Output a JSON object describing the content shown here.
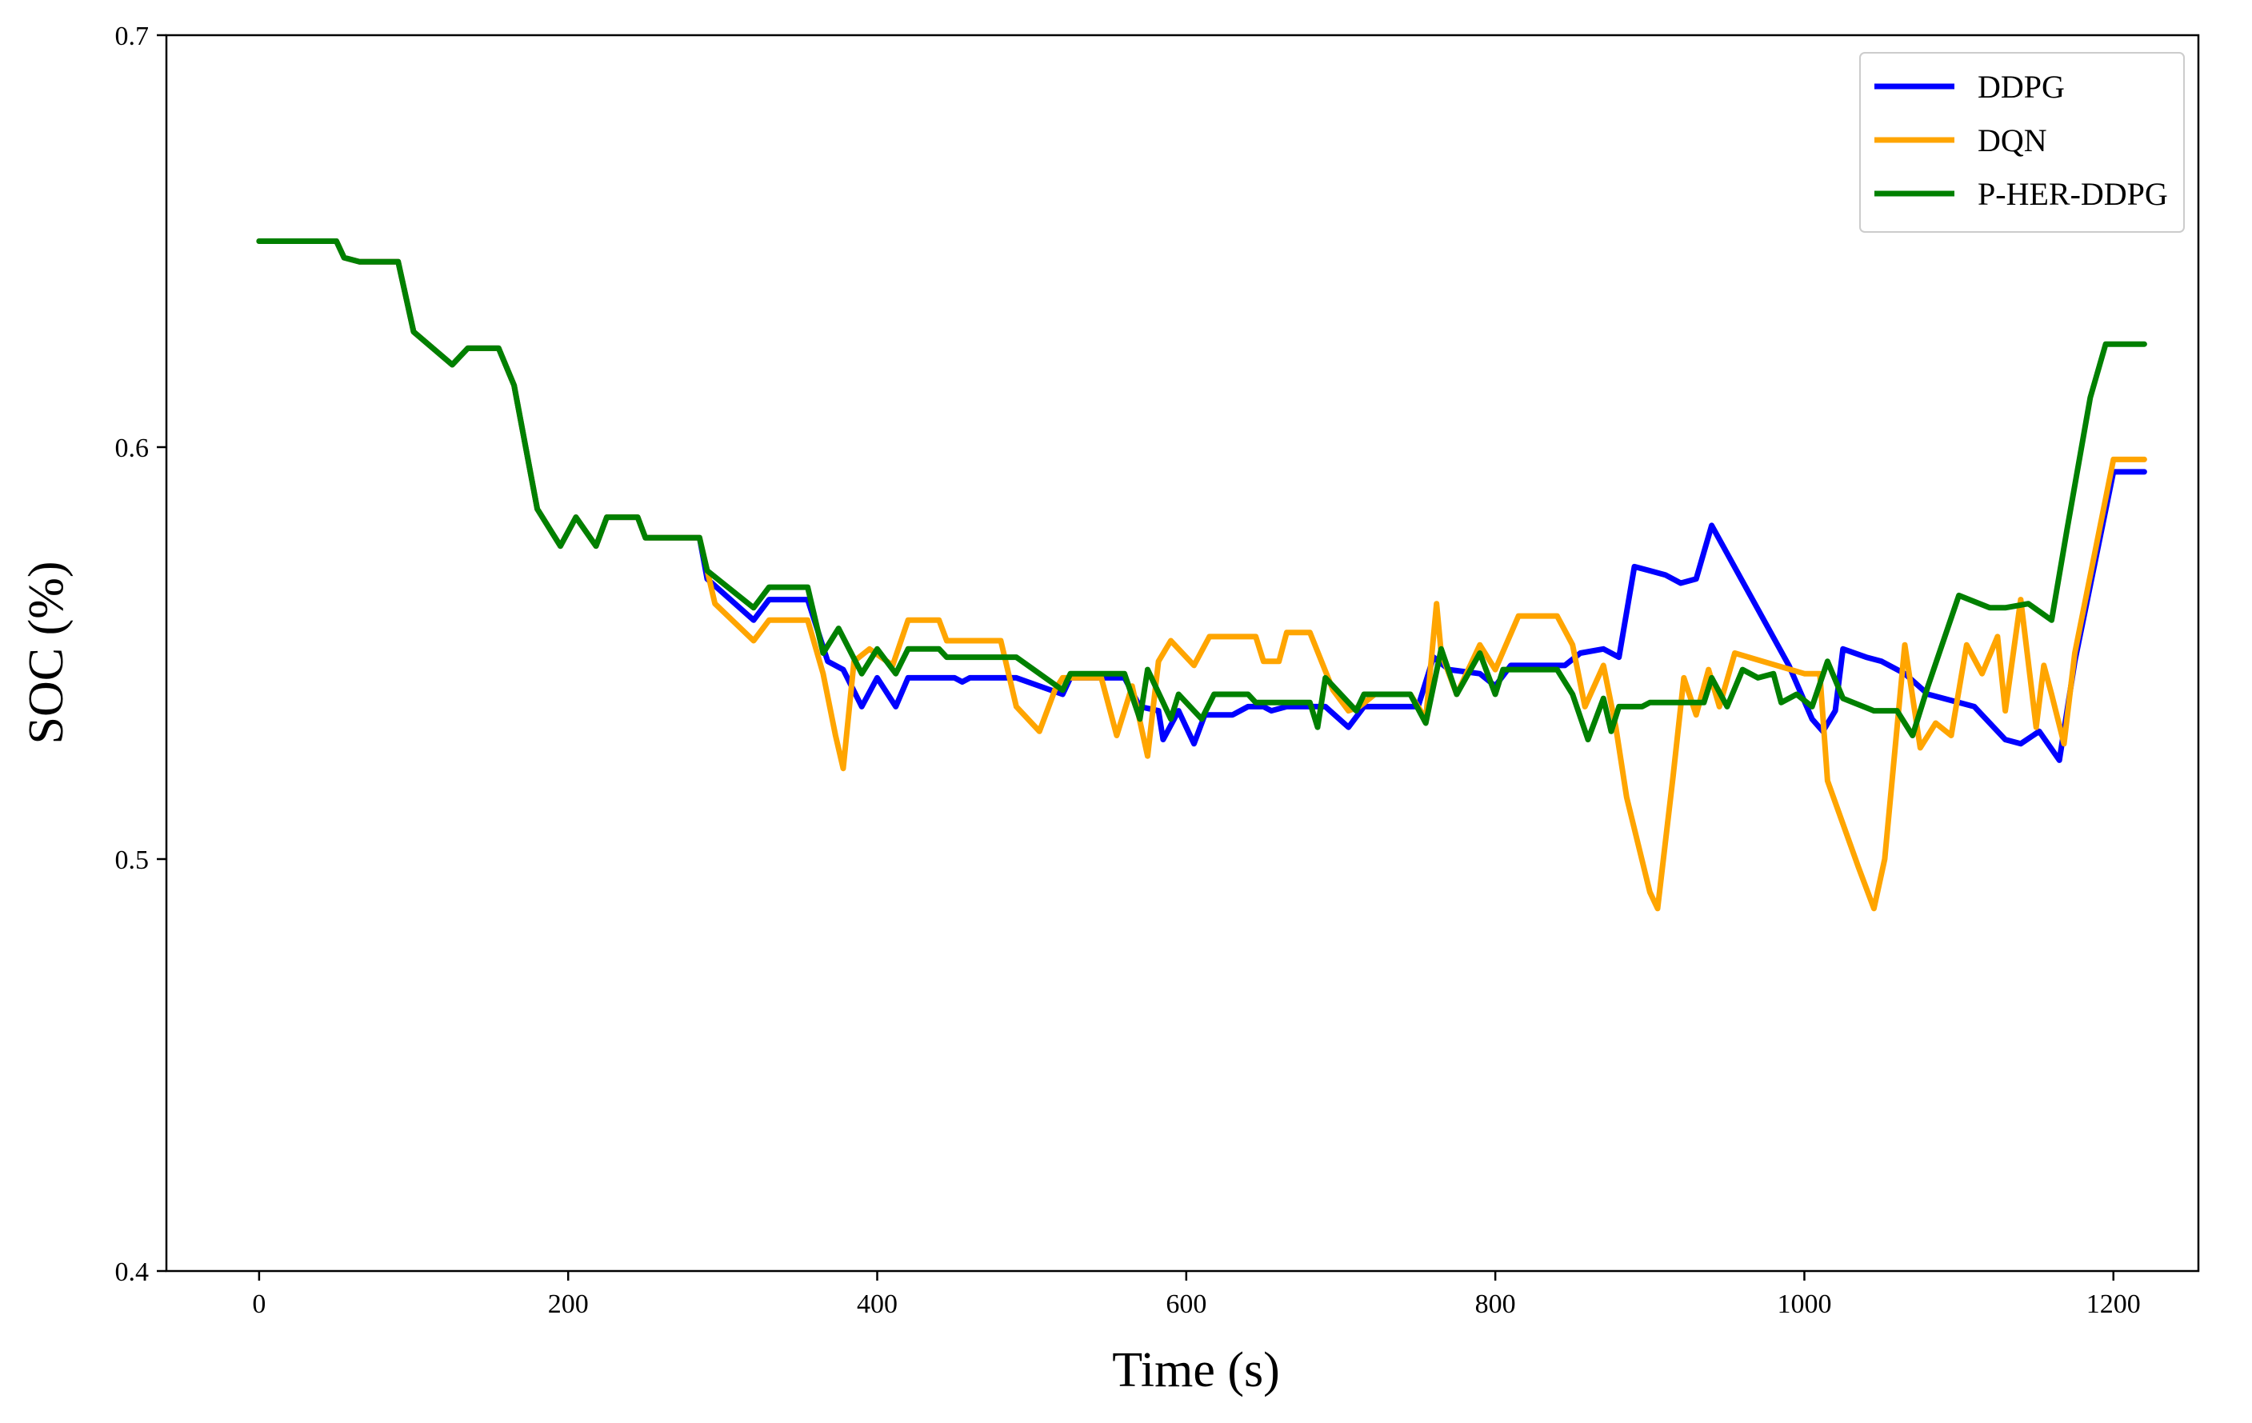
{
  "chart_data": {
    "type": "line",
    "title": "",
    "xlabel": "Time (s)",
    "ylabel": "SOC (%)",
    "xlim": [
      -60,
      1255
    ],
    "ylim": [
      0.4,
      0.7
    ],
    "xticks": [
      0,
      200,
      400,
      600,
      800,
      1000,
      1200
    ],
    "yticks": [
      0.4,
      0.5,
      0.6,
      0.7
    ],
    "xtick_labels": [
      "0",
      "200",
      "400",
      "600",
      "800",
      "1000",
      "1200"
    ],
    "ytick_labels": [
      "0.4",
      "0.5",
      "0.6",
      "0.7"
    ],
    "grid": false,
    "legend_position": "top-right",
    "series": [
      {
        "name": "DDPG",
        "color": "#0000ff",
        "points": [
          [
            0,
            0.65
          ],
          [
            50,
            0.65
          ],
          [
            55,
            0.646
          ],
          [
            65,
            0.645
          ],
          [
            90,
            0.645
          ],
          [
            100,
            0.628
          ],
          [
            125,
            0.62
          ],
          [
            135,
            0.624
          ],
          [
            155,
            0.624
          ],
          [
            165,
            0.615
          ],
          [
            180,
            0.585
          ],
          [
            195,
            0.576
          ],
          [
            205,
            0.583
          ],
          [
            218,
            0.576
          ],
          [
            225,
            0.583
          ],
          [
            245,
            0.583
          ],
          [
            250,
            0.578
          ],
          [
            285,
            0.578
          ],
          [
            290,
            0.568
          ],
          [
            320,
            0.558
          ],
          [
            330,
            0.563
          ],
          [
            355,
            0.563
          ],
          [
            368,
            0.548
          ],
          [
            378,
            0.546
          ],
          [
            390,
            0.537
          ],
          [
            400,
            0.544
          ],
          [
            412,
            0.537
          ],
          [
            420,
            0.544
          ],
          [
            450,
            0.544
          ],
          [
            455,
            0.543
          ],
          [
            460,
            0.544
          ],
          [
            490,
            0.544
          ],
          [
            520,
            0.54
          ],
          [
            525,
            0.544
          ],
          [
            560,
            0.544
          ],
          [
            570,
            0.537
          ],
          [
            582,
            0.536
          ],
          [
            585,
            0.529
          ],
          [
            595,
            0.536
          ],
          [
            605,
            0.528
          ],
          [
            612,
            0.535
          ],
          [
            630,
            0.535
          ],
          [
            640,
            0.537
          ],
          [
            650,
            0.537
          ],
          [
            655,
            0.536
          ],
          [
            665,
            0.537
          ],
          [
            690,
            0.537
          ],
          [
            705,
            0.532
          ],
          [
            715,
            0.537
          ],
          [
            750,
            0.537
          ],
          [
            760,
            0.549
          ],
          [
            770,
            0.546
          ],
          [
            790,
            0.545
          ],
          [
            800,
            0.542
          ],
          [
            810,
            0.547
          ],
          [
            845,
            0.547
          ],
          [
            855,
            0.55
          ],
          [
            870,
            0.551
          ],
          [
            880,
            0.549
          ],
          [
            890,
            0.571
          ],
          [
            900,
            0.57
          ],
          [
            910,
            0.569
          ],
          [
            920,
            0.567
          ],
          [
            930,
            0.568
          ],
          [
            940,
            0.581
          ],
          [
            990,
            0.547
          ],
          [
            1005,
            0.534
          ],
          [
            1012,
            0.531
          ],
          [
            1020,
            0.536
          ],
          [
            1025,
            0.551
          ],
          [
            1040,
            0.549
          ],
          [
            1050,
            0.548
          ],
          [
            1065,
            0.545
          ],
          [
            1080,
            0.54
          ],
          [
            1110,
            0.537
          ],
          [
            1130,
            0.529
          ],
          [
            1140,
            0.528
          ],
          [
            1152,
            0.531
          ],
          [
            1165,
            0.524
          ],
          [
            1175,
            0.548
          ],
          [
            1200,
            0.594
          ],
          [
            1220,
            0.594
          ]
        ]
      },
      {
        "name": "DQN",
        "color": "#ffa500",
        "points": [
          [
            0,
            0.65
          ],
          [
            50,
            0.65
          ],
          [
            55,
            0.646
          ],
          [
            65,
            0.645
          ],
          [
            90,
            0.645
          ],
          [
            100,
            0.628
          ],
          [
            125,
            0.62
          ],
          [
            135,
            0.624
          ],
          [
            155,
            0.624
          ],
          [
            165,
            0.615
          ],
          [
            180,
            0.585
          ],
          [
            195,
            0.576
          ],
          [
            205,
            0.583
          ],
          [
            218,
            0.576
          ],
          [
            225,
            0.583
          ],
          [
            245,
            0.583
          ],
          [
            250,
            0.578
          ],
          [
            285,
            0.578
          ],
          [
            295,
            0.562
          ],
          [
            320,
            0.553
          ],
          [
            330,
            0.558
          ],
          [
            355,
            0.558
          ],
          [
            365,
            0.545
          ],
          [
            373,
            0.53
          ],
          [
            378,
            0.522
          ],
          [
            385,
            0.548
          ],
          [
            395,
            0.551
          ],
          [
            410,
            0.547
          ],
          [
            420,
            0.558
          ],
          [
            440,
            0.558
          ],
          [
            445,
            0.553
          ],
          [
            480,
            0.553
          ],
          [
            490,
            0.537
          ],
          [
            505,
            0.531
          ],
          [
            515,
            0.541
          ],
          [
            520,
            0.544
          ],
          [
            545,
            0.544
          ],
          [
            555,
            0.53
          ],
          [
            565,
            0.542
          ],
          [
            575,
            0.525
          ],
          [
            582,
            0.548
          ],
          [
            590,
            0.553
          ],
          [
            605,
            0.547
          ],
          [
            615,
            0.554
          ],
          [
            645,
            0.554
          ],
          [
            650,
            0.548
          ],
          [
            660,
            0.548
          ],
          [
            665,
            0.555
          ],
          [
            680,
            0.555
          ],
          [
            695,
            0.541
          ],
          [
            705,
            0.536
          ],
          [
            712,
            0.537
          ],
          [
            722,
            0.54
          ],
          [
            745,
            0.54
          ],
          [
            755,
            0.534
          ],
          [
            762,
            0.562
          ],
          [
            765,
            0.55
          ],
          [
            775,
            0.54
          ],
          [
            790,
            0.552
          ],
          [
            800,
            0.546
          ],
          [
            815,
            0.559
          ],
          [
            840,
            0.559
          ],
          [
            850,
            0.552
          ],
          [
            858,
            0.537
          ],
          [
            870,
            0.547
          ],
          [
            878,
            0.532
          ],
          [
            885,
            0.515
          ],
          [
            900,
            0.492
          ],
          [
            905,
            0.488
          ],
          [
            915,
            0.52
          ],
          [
            922,
            0.544
          ],
          [
            930,
            0.535
          ],
          [
            938,
            0.546
          ],
          [
            945,
            0.537
          ],
          [
            955,
            0.55
          ],
          [
            1000,
            0.545
          ],
          [
            1010,
            0.545
          ],
          [
            1015,
            0.519
          ],
          [
            1035,
            0.498
          ],
          [
            1045,
            0.488
          ],
          [
            1052,
            0.5
          ],
          [
            1065,
            0.552
          ],
          [
            1075,
            0.527
          ],
          [
            1085,
            0.533
          ],
          [
            1095,
            0.53
          ],
          [
            1105,
            0.552
          ],
          [
            1115,
            0.545
          ],
          [
            1125,
            0.554
          ],
          [
            1130,
            0.536
          ],
          [
            1140,
            0.563
          ],
          [
            1150,
            0.532
          ],
          [
            1155,
            0.547
          ],
          [
            1160,
            0.54
          ],
          [
            1168,
            0.528
          ],
          [
            1175,
            0.55
          ],
          [
            1200,
            0.597
          ],
          [
            1220,
            0.597
          ]
        ]
      },
      {
        "name": "P-HER-DDPG",
        "color": "#008000",
        "points": [
          [
            0,
            0.65
          ],
          [
            50,
            0.65
          ],
          [
            55,
            0.646
          ],
          [
            65,
            0.645
          ],
          [
            90,
            0.645
          ],
          [
            100,
            0.628
          ],
          [
            125,
            0.62
          ],
          [
            135,
            0.624
          ],
          [
            155,
            0.624
          ],
          [
            165,
            0.615
          ],
          [
            180,
            0.585
          ],
          [
            195,
            0.576
          ],
          [
            205,
            0.583
          ],
          [
            218,
            0.576
          ],
          [
            225,
            0.583
          ],
          [
            245,
            0.583
          ],
          [
            250,
            0.578
          ],
          [
            285,
            0.578
          ],
          [
            290,
            0.57
          ],
          [
            320,
            0.561
          ],
          [
            330,
            0.566
          ],
          [
            355,
            0.566
          ],
          [
            365,
            0.55
          ],
          [
            375,
            0.556
          ],
          [
            390,
            0.545
          ],
          [
            400,
            0.551
          ],
          [
            412,
            0.545
          ],
          [
            420,
            0.551
          ],
          [
            440,
            0.551
          ],
          [
            445,
            0.549
          ],
          [
            480,
            0.549
          ],
          [
            490,
            0.549
          ],
          [
            520,
            0.541
          ],
          [
            525,
            0.545
          ],
          [
            560,
            0.545
          ],
          [
            570,
            0.534
          ],
          [
            575,
            0.546
          ],
          [
            585,
            0.538
          ],
          [
            590,
            0.534
          ],
          [
            595,
            0.54
          ],
          [
            610,
            0.534
          ],
          [
            618,
            0.54
          ],
          [
            640,
            0.54
          ],
          [
            645,
            0.538
          ],
          [
            665,
            0.538
          ],
          [
            680,
            0.538
          ],
          [
            685,
            0.532
          ],
          [
            690,
            0.544
          ],
          [
            710,
            0.536
          ],
          [
            715,
            0.54
          ],
          [
            745,
            0.54
          ],
          [
            755,
            0.533
          ],
          [
            765,
            0.551
          ],
          [
            775,
            0.54
          ],
          [
            790,
            0.55
          ],
          [
            800,
            0.54
          ],
          [
            805,
            0.546
          ],
          [
            840,
            0.546
          ],
          [
            850,
            0.54
          ],
          [
            860,
            0.529
          ],
          [
            870,
            0.539
          ],
          [
            875,
            0.531
          ],
          [
            880,
            0.537
          ],
          [
            895,
            0.537
          ],
          [
            900,
            0.538
          ],
          [
            935,
            0.538
          ],
          [
            940,
            0.544
          ],
          [
            950,
            0.537
          ],
          [
            960,
            0.546
          ],
          [
            970,
            0.544
          ],
          [
            980,
            0.545
          ],
          [
            985,
            0.538
          ],
          [
            995,
            0.54
          ],
          [
            1005,
            0.537
          ],
          [
            1015,
            0.548
          ],
          [
            1025,
            0.539
          ],
          [
            1045,
            0.536
          ],
          [
            1060,
            0.536
          ],
          [
            1070,
            0.53
          ],
          [
            1080,
            0.542
          ],
          [
            1100,
            0.564
          ],
          [
            1120,
            0.561
          ],
          [
            1130,
            0.561
          ],
          [
            1145,
            0.562
          ],
          [
            1160,
            0.558
          ],
          [
            1170,
            0.58
          ],
          [
            1185,
            0.612
          ],
          [
            1195,
            0.625
          ],
          [
            1220,
            0.625
          ]
        ]
      }
    ]
  }
}
